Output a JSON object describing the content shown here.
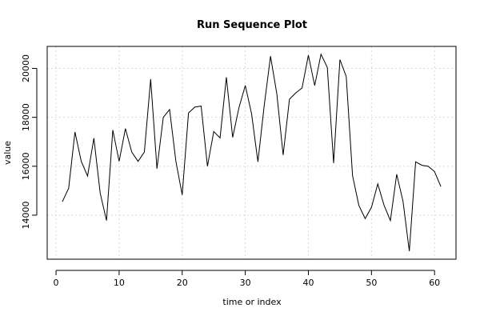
{
  "chart_data": {
    "type": "line",
    "title": "Run Sequence Plot",
    "xlabel": "time or index",
    "ylabel": "value",
    "xlim": [
      -1.4,
      63.4
    ],
    "ylim": [
      12200,
      20900
    ],
    "x_ticks": [
      0,
      10,
      20,
      30,
      40,
      50,
      60
    ],
    "y_ticks": [
      14000,
      16000,
      18000,
      20000
    ],
    "grid": true,
    "series_color": "#000000",
    "grid_color": "#d9d9d9",
    "series": [
      {
        "x": [
          1,
          2,
          3,
          4,
          5,
          6,
          7,
          8,
          9,
          10,
          11,
          12,
          13,
          14,
          15,
          16,
          17,
          18,
          19,
          20,
          21,
          22,
          23,
          24,
          25,
          26,
          27,
          28,
          29,
          30,
          31,
          32,
          33,
          34,
          35,
          36,
          37,
          38,
          39,
          40,
          41,
          42,
          43,
          44,
          45,
          46,
          47,
          48,
          49,
          50,
          51,
          52,
          53,
          54,
          55,
          56,
          57,
          58,
          59,
          60,
          61
        ],
        "values": [
          14550,
          15100,
          17400,
          16200,
          15600,
          17150,
          14900,
          13780,
          17480,
          16200,
          17540,
          16580,
          16200,
          16580,
          19560,
          15900,
          18000,
          18320,
          16200,
          14830,
          18180,
          18420,
          18460,
          16000,
          17420,
          17160,
          19640,
          17180,
          18400,
          19300,
          18140,
          16180,
          18480,
          20500,
          18960,
          16460,
          18740,
          19000,
          19200,
          20540,
          19300,
          20580,
          20040,
          16130,
          20360,
          19670,
          15620,
          14400,
          13860,
          14320,
          15280,
          14400,
          13780,
          15670,
          14570,
          12530,
          16180,
          16040,
          16000,
          15780,
          15170
        ]
      }
    ]
  }
}
